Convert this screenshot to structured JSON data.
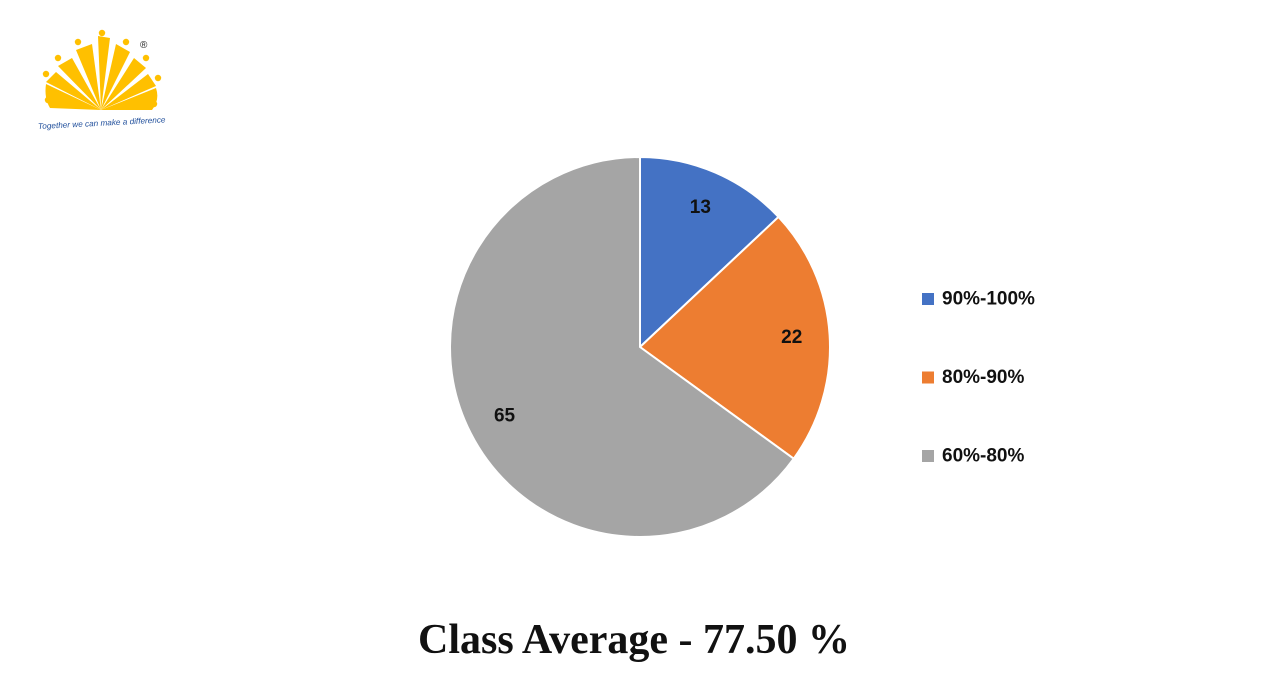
{
  "logo": {
    "tagline": "Together we can make a difference",
    "registered_mark": "®",
    "color": "#FFC000"
  },
  "chart_data": {
    "type": "pie",
    "categories": [
      "90%-100%",
      "80%-90%",
      "60%-80%"
    ],
    "values": [
      13,
      22,
      65
    ],
    "colors": [
      "#4472C4",
      "#ED7D31",
      "#A5A5A5"
    ],
    "data_labels": [
      "13",
      "22",
      "65"
    ],
    "legend_position": "right",
    "title": ""
  },
  "footer": {
    "class_average": "Class Average - 77.50 %"
  }
}
